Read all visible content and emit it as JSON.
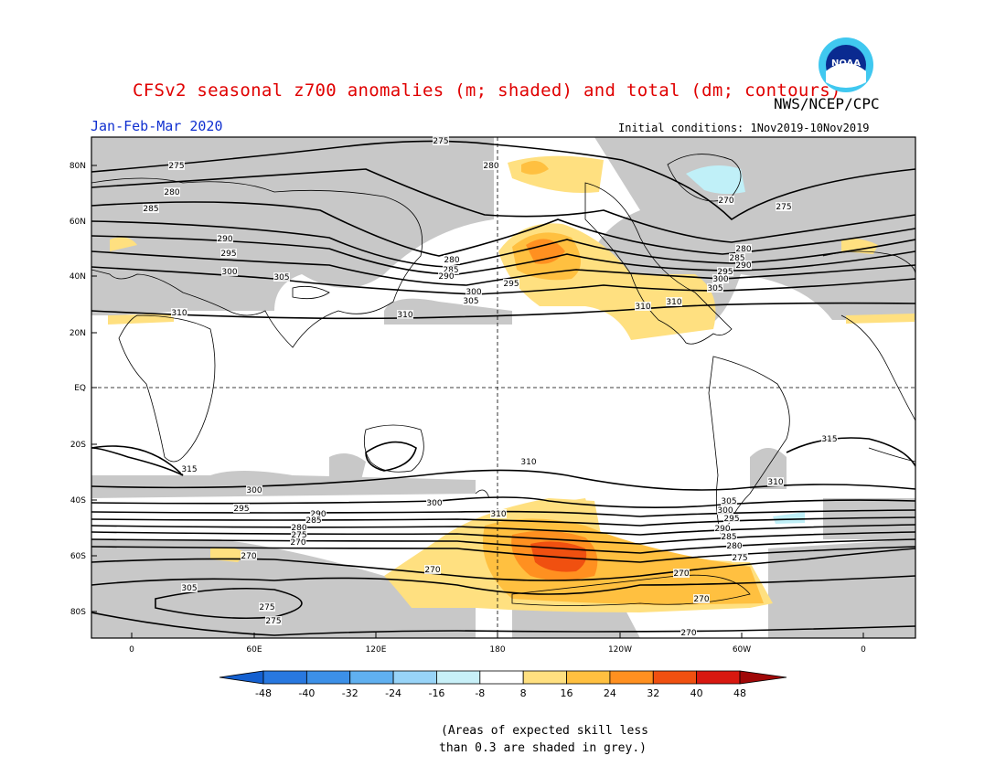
{
  "header": {
    "title": "CFSv2 seasonal z700 anomalies (m; shaded) and total (dm; contours)",
    "agency": "NWS/NCEP/CPC",
    "period": "Jan-Feb-Mar 2020",
    "initial_conditions": "Initial conditions: 1Nov2019-10Nov2019",
    "logo_icon": "noaa-logo-icon",
    "logo_text": "NOAA"
  },
  "map": {
    "lat_labels": [
      "80N",
      "60N",
      "40N",
      "20N",
      "EQ",
      "20S",
      "40S",
      "60S",
      "80S"
    ],
    "lon_labels": [
      "0",
      "60E",
      "120E",
      "180",
      "120W",
      "60W",
      "0"
    ],
    "contour_labels": [
      "275",
      "275",
      "280",
      "285",
      "290",
      "295",
      "300",
      "305",
      "305",
      "310",
      "310",
      "280",
      "285",
      "290",
      "295",
      "300",
      "305",
      "310",
      "280",
      "270",
      "275",
      "280",
      "285",
      "290",
      "295",
      "300",
      "305",
      "310",
      "315",
      "315",
      "310",
      "310",
      "300",
      "295",
      "290",
      "285",
      "280",
      "275",
      "270",
      "270",
      "305",
      "300",
      "310",
      "305",
      "300",
      "295",
      "290",
      "285",
      "280",
      "275",
      "270",
      "270",
      "270",
      "275",
      "275",
      "270"
    ],
    "colors": {
      "skill_grey": "#c8c8c8",
      "light_yellow": "#ffe080",
      "yellow_orange": "#ffc040",
      "orange": "#ff9020",
      "red_orange": "#f05010",
      "light_cyan": "#c0f0f8"
    }
  },
  "colorbar": {
    "labels": [
      "-48",
      "-40",
      "-32",
      "-24",
      "-16",
      "-8",
      "8",
      "16",
      "24",
      "32",
      "40",
      "48"
    ],
    "colors": [
      "#1460d0",
      "#2878e0",
      "#3c90e8",
      "#60b0f0",
      "#98d4f8",
      "#c8f0f8",
      "#ffffff",
      "#ffe080",
      "#ffc040",
      "#ff9020",
      "#f05010",
      "#d81810",
      "#a00808"
    ]
  },
  "footnote": {
    "line1": "(Areas of expected skill less",
    "line2": "than 0.3 are shaded in grey.)"
  }
}
